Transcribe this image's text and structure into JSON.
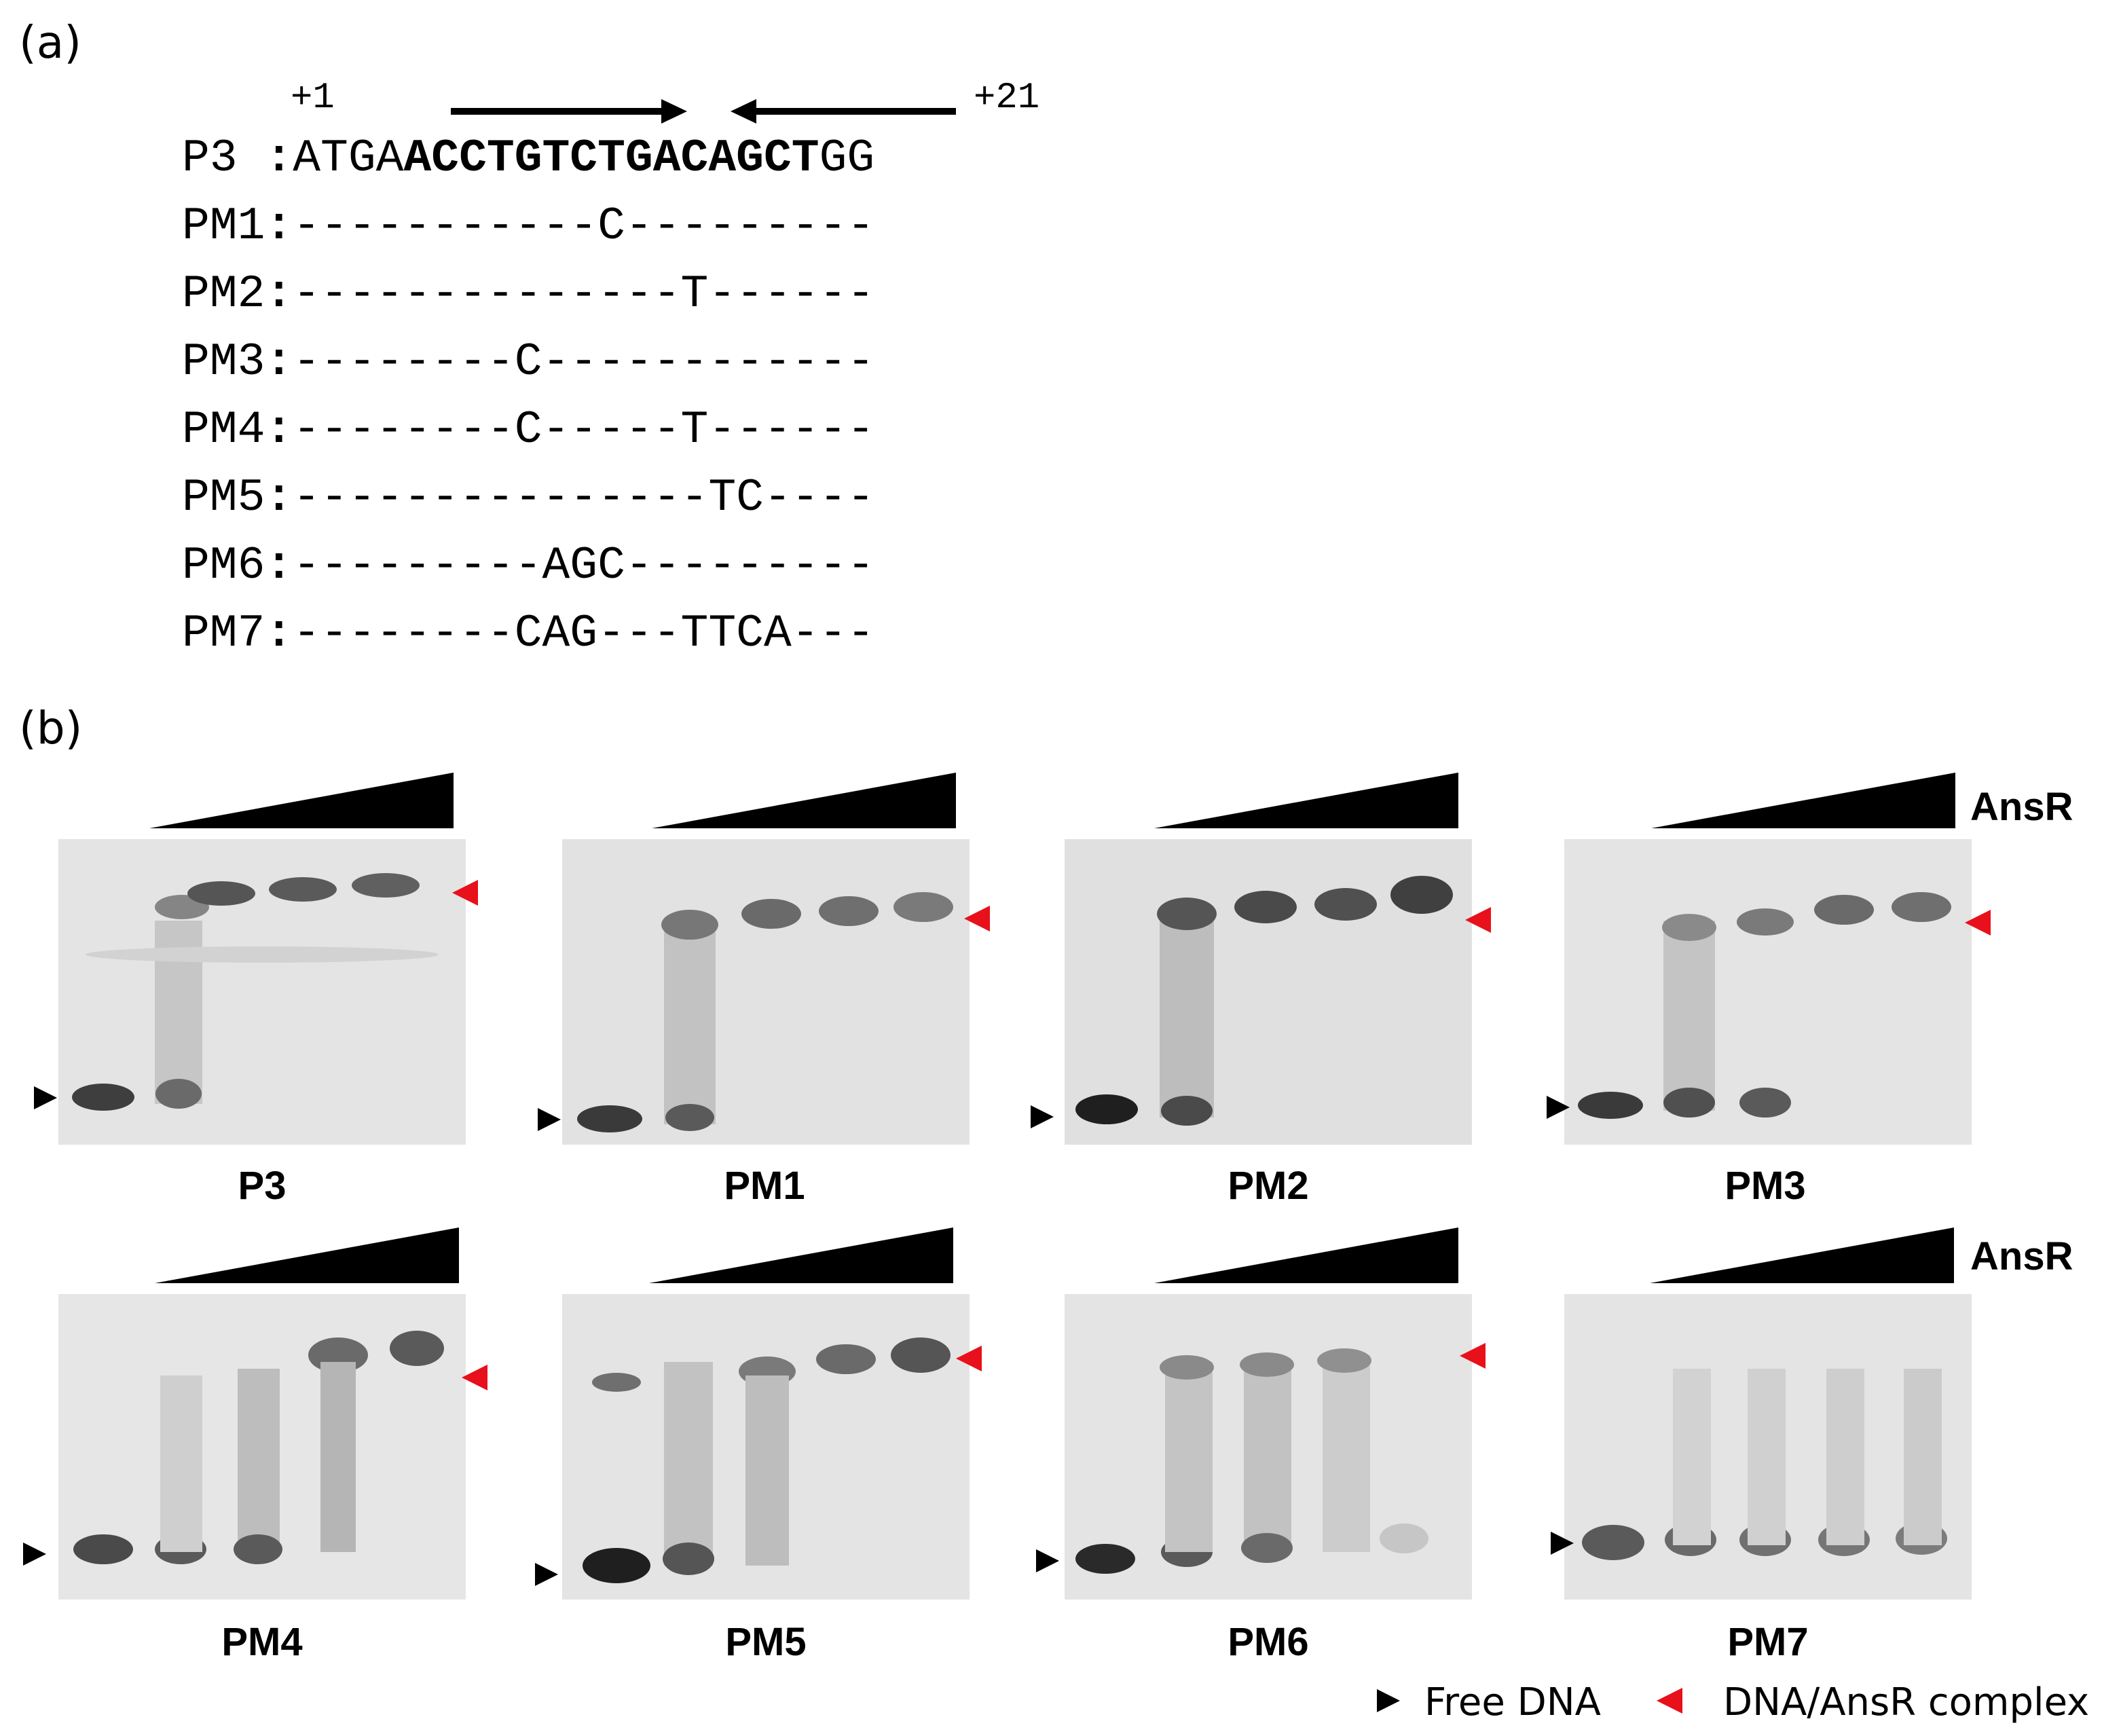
{
  "panels": {
    "a": "(a)",
    "b": "(b)"
  },
  "sequence": {
    "pos_start": "+1",
    "pos_end": "+21",
    "rows": [
      {
        "name": "P3 ",
        "colon": ":",
        "pre": "ATGA",
        "bold": "ACCTGTCTGACAGCT",
        "post": "GG"
      },
      {
        "name": "PM1",
        "colon": ":",
        "seq": "-----------C---------"
      },
      {
        "name": "PM2",
        "colon": ":",
        "seq": "--------------T------"
      },
      {
        "name": "PM3",
        "colon": ":",
        "seq": "--------C------------"
      },
      {
        "name": "PM4",
        "colon": ":",
        "seq": "--------C-----T------"
      },
      {
        "name": "PM5",
        "colon": ":",
        "seq": "---------------TC----"
      },
      {
        "name": "PM6",
        "colon": ":",
        "seq": "---------AGC---------"
      },
      {
        "name": "PM7",
        "colon": ":",
        "seq": "--------CAG---TTCA---"
      }
    ]
  },
  "gels": {
    "titles": [
      "P3",
      "PM1",
      "PM2",
      "PM3",
      "PM4",
      "PM5",
      "PM6",
      "PM7"
    ],
    "protein_label": "AnsR"
  },
  "legend": {
    "free_dna": "Free DNA",
    "complex": "DNA/AnsR complex",
    "free_color": "#000000",
    "complex_color": "#e8101a"
  }
}
